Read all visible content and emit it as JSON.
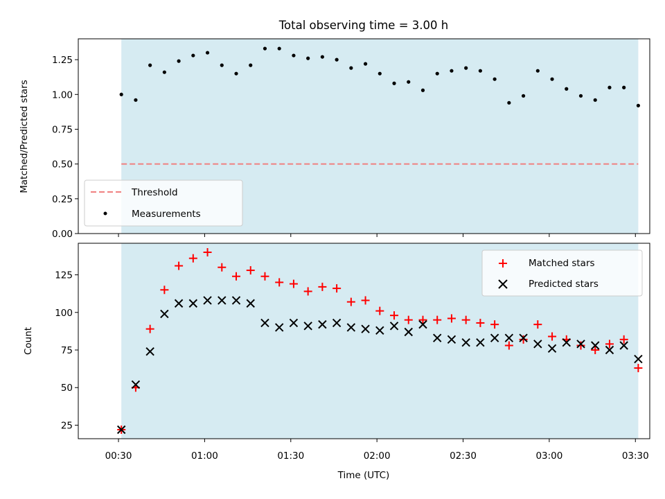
{
  "chart_data": [
    {
      "type": "scatter",
      "title": "Total observing time = 3.00 h",
      "xlabel": "",
      "ylabel": "Matched/Predicted stars",
      "ylim": [
        0,
        1.4
      ],
      "yticks": [
        0.0,
        0.25,
        0.5,
        0.75,
        1.0,
        1.25
      ],
      "ytick_labels": [
        "0.00",
        "0.25",
        "0.50",
        "0.75",
        "1.00",
        "1.25"
      ],
      "x_unit": "minutes after 00:00 UTC",
      "xlim": [
        16,
        215
      ],
      "shaded_span": [
        31,
        211
      ],
      "shade_color": "#add8e6",
      "threshold": 0.5,
      "threshold_color": "#f08080",
      "legend_position": "lower-left",
      "series": [
        {
          "name": "Threshold",
          "kind": "dashed-line"
        },
        {
          "name": "Measurements",
          "kind": "points",
          "color": "#000000",
          "x": [
            31,
            36,
            41,
            46,
            51,
            56,
            61,
            66,
            71,
            76,
            81,
            86,
            91,
            96,
            101,
            106,
            111,
            116,
            121,
            126,
            131,
            136,
            141,
            146,
            151,
            156,
            161,
            166,
            171,
            176,
            181,
            186,
            191,
            196,
            201,
            206,
            211
          ],
          "y": [
            1.0,
            0.96,
            1.21,
            1.16,
            1.24,
            1.28,
            1.3,
            1.21,
            1.15,
            1.21,
            1.33,
            1.33,
            1.28,
            1.26,
            1.27,
            1.25,
            1.19,
            1.22,
            1.15,
            1.08,
            1.09,
            1.03,
            1.15,
            1.17,
            1.19,
            1.17,
            1.11,
            0.94,
            0.99,
            1.17,
            1.11,
            1.04,
            0.99,
            0.96,
            1.05,
            1.05,
            0.92
          ]
        }
      ]
    },
    {
      "type": "scatter",
      "title": "",
      "xlabel": "Time (UTC)",
      "ylabel": "Count",
      "ylim": [
        16,
        146
      ],
      "yticks": [
        25,
        50,
        75,
        100,
        125
      ],
      "ytick_labels": [
        "25",
        "50",
        "75",
        "100",
        "125"
      ],
      "xticks": [
        30,
        60,
        90,
        120,
        150,
        180,
        210
      ],
      "xtick_labels": [
        "00:30",
        "01:00",
        "01:30",
        "02:00",
        "02:30",
        "03:00",
        "03:30"
      ],
      "xlim": [
        16,
        215
      ],
      "shaded_span": [
        31,
        211
      ],
      "shade_color": "#add8e6",
      "legend_position": "upper-right",
      "x": [
        31,
        36,
        41,
        46,
        51,
        56,
        61,
        66,
        71,
        76,
        81,
        86,
        91,
        96,
        101,
        106,
        111,
        116,
        121,
        126,
        131,
        136,
        141,
        146,
        151,
        156,
        161,
        166,
        171,
        176,
        181,
        186,
        191,
        196,
        201,
        206,
        211
      ],
      "series": [
        {
          "name": "Matched stars",
          "marker": "plus",
          "color": "#ff0000",
          "values": [
            22,
            50,
            89,
            115,
            131,
            136,
            140,
            130,
            124,
            128,
            124,
            120,
            119,
            114,
            117,
            116,
            107,
            108,
            101,
            98,
            95,
            95,
            95,
            96,
            95,
            93,
            92,
            78,
            82,
            92,
            84,
            82,
            78,
            75,
            79,
            82,
            63
          ]
        },
        {
          "name": "Predicted stars",
          "marker": "x",
          "color": "#000000",
          "values": [
            22,
            52,
            74,
            99,
            106,
            106,
            108,
            108,
            108,
            106,
            93,
            90,
            93,
            91,
            92,
            93,
            90,
            89,
            88,
            91,
            87,
            92,
            83,
            82,
            80,
            80,
            83,
            83,
            83,
            79,
            76,
            80,
            79,
            78,
            75,
            78,
            69
          ]
        }
      ]
    }
  ]
}
